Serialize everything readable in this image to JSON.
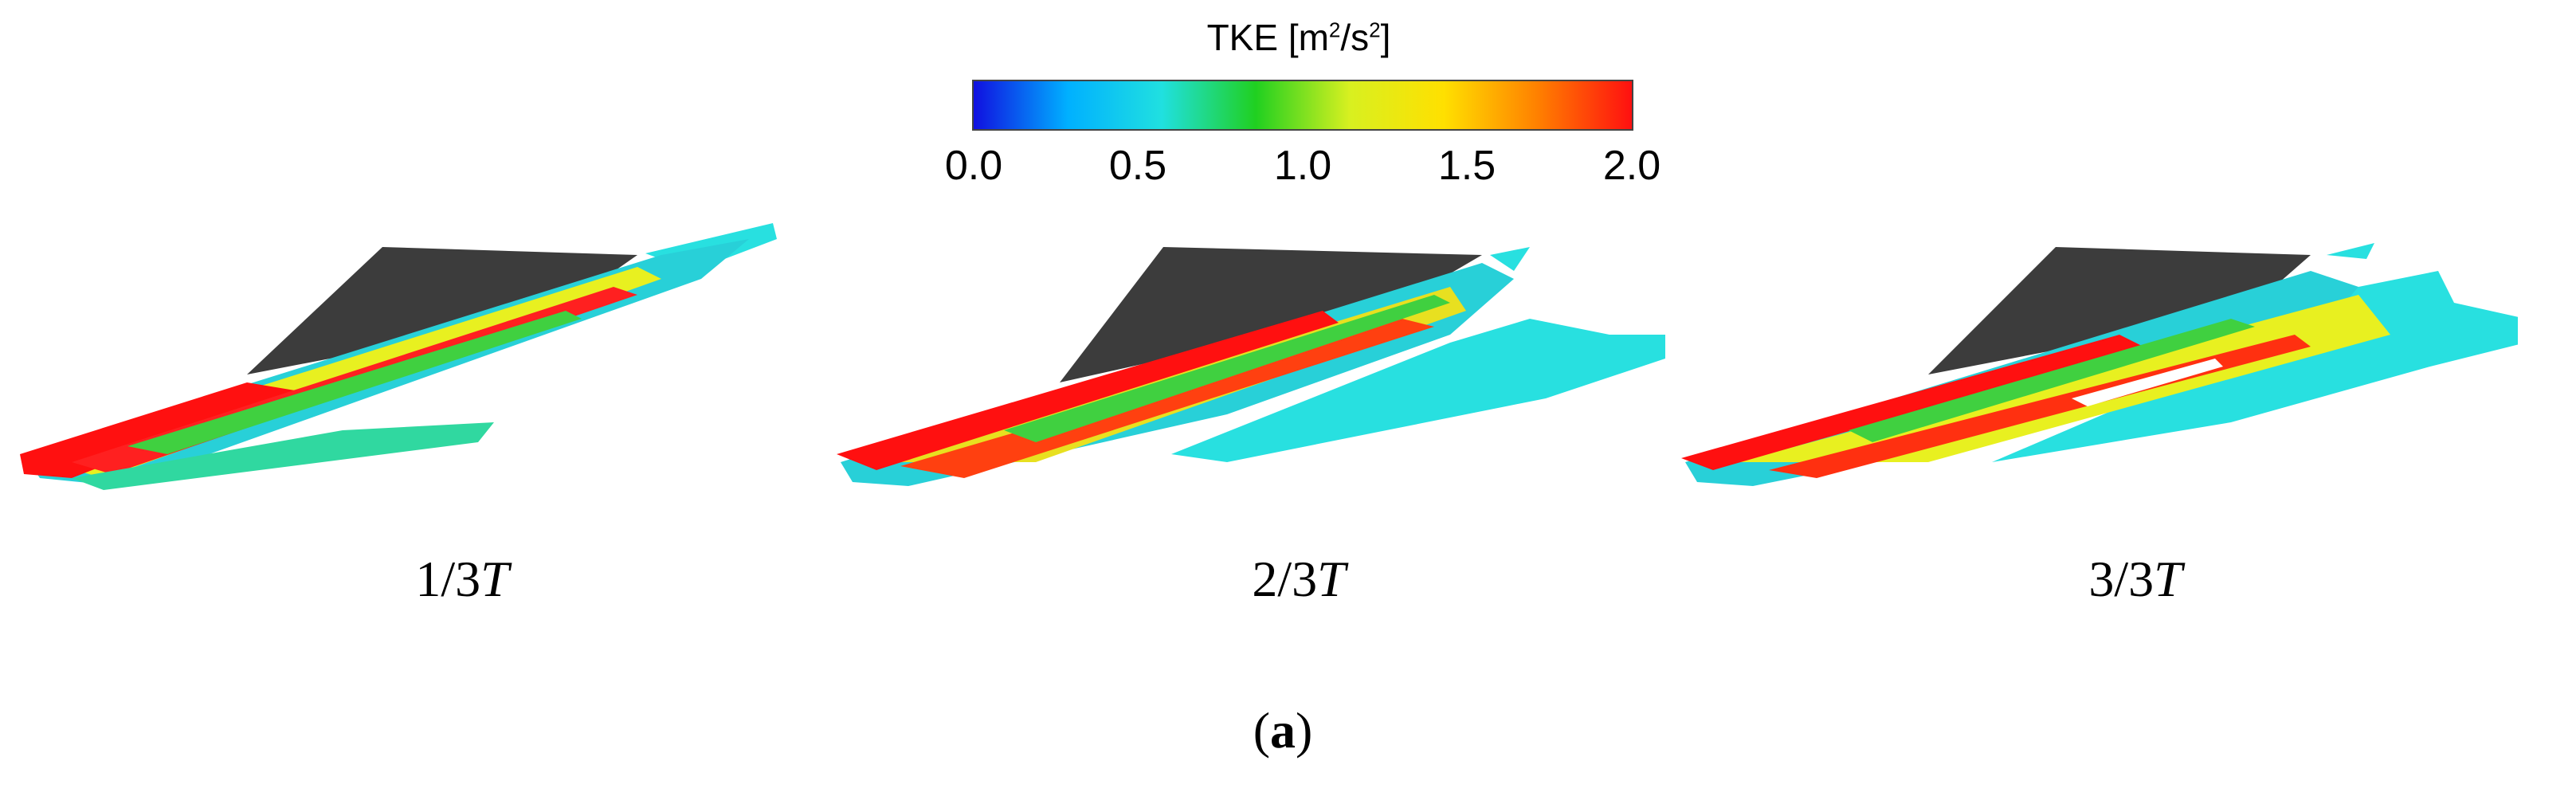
{
  "colorbar": {
    "title_prefix": "TKE [m",
    "title_sup1": "2",
    "title_mid": "/s",
    "title_sup2": "2",
    "title_suffix": "]",
    "ticks": [
      "0.0",
      "0.5",
      "1.0",
      "1.5",
      "2.0"
    ],
    "colors": [
      "#1010e0",
      "#00b0ff",
      "#20e0e0",
      "#20d020",
      "#d8f020",
      "#ffe000",
      "#ff8000",
      "#ff1010"
    ]
  },
  "panels": [
    {
      "caption_prefix": "1/3",
      "caption_italic": "T"
    },
    {
      "caption_prefix": "2/3",
      "caption_italic": "T"
    },
    {
      "caption_prefix": "3/3",
      "caption_italic": "T"
    }
  ],
  "subfigure": {
    "open": "(",
    "letter": "a",
    "close": ")"
  }
}
